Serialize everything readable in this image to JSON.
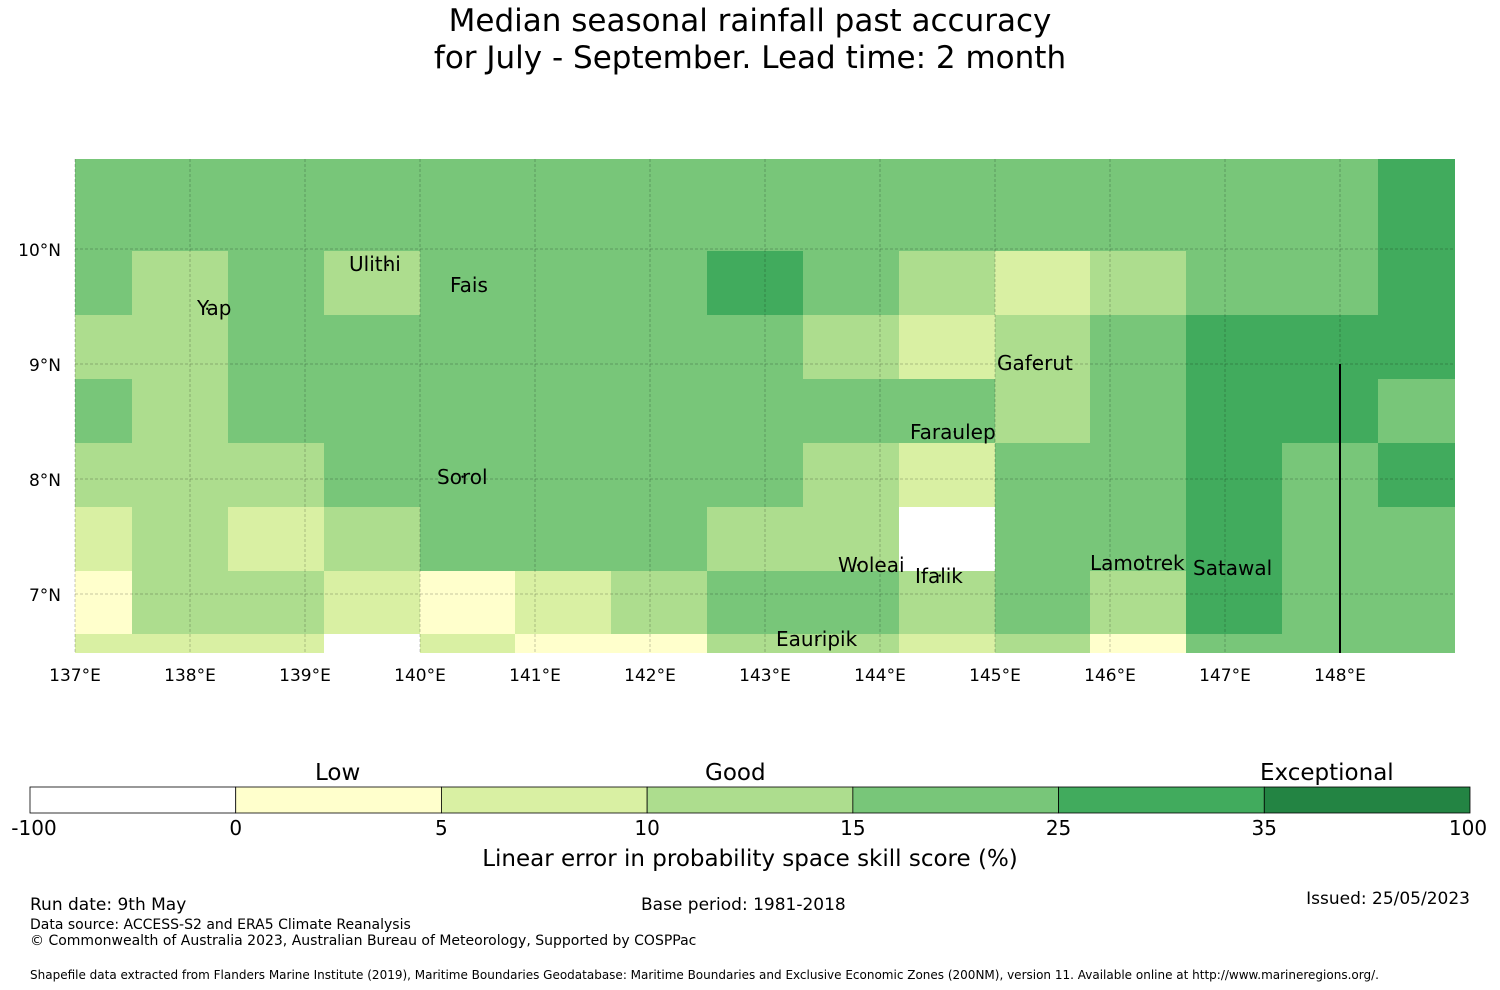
{
  "title": {
    "line1": "Median seasonal rainfall past accuracy",
    "line2": "for July - September. Lead time: 2 month"
  },
  "map": {
    "lon_range": [
      137.0,
      149.0
    ],
    "lat_range": [
      6.5,
      10.8
    ],
    "cell_size_deg": 0.833,
    "grid": true,
    "lat_ticks": [
      {
        "value": 10,
        "label": "10°N"
      },
      {
        "value": 9,
        "label": "9°N"
      },
      {
        "value": 8,
        "label": "8°N"
      },
      {
        "value": 7,
        "label": "7°N"
      }
    ],
    "lon_ticks": [
      {
        "value": 137,
        "label": "137°E"
      },
      {
        "value": 138,
        "label": "138°E"
      },
      {
        "value": 139,
        "label": "139°E"
      },
      {
        "value": 140,
        "label": "140°E"
      },
      {
        "value": 141,
        "label": "141°E"
      },
      {
        "value": 142,
        "label": "142°E"
      },
      {
        "value": 143,
        "label": "143°E"
      },
      {
        "value": 144,
        "label": "144°E"
      },
      {
        "value": 145,
        "label": "145°E"
      },
      {
        "value": 146,
        "label": "146°E"
      },
      {
        "value": 147,
        "label": "147°E"
      },
      {
        "value": 148,
        "label": "148°E"
      }
    ],
    "boundary_line": {
      "lon": 148.0,
      "lat_from": 6.5,
      "lat_to": 9.0
    },
    "places": [
      {
        "name": "Yap",
        "lon": 138.15,
        "lat": 9.48
      },
      {
        "name": "Ulithi",
        "lon": 139.72,
        "lat": 9.86
      },
      {
        "name": "Fais",
        "lon": 140.52,
        "lat": 9.69
      },
      {
        "name": "Gaferut",
        "lon": 145.37,
        "lat": 9.0
      },
      {
        "name": "Faraulep",
        "lon": 144.65,
        "lat": 8.41
      },
      {
        "name": "Sorol",
        "lon": 140.37,
        "lat": 8.02
      },
      {
        "name": "Woleai",
        "lon": 143.81,
        "lat": 7.25
      },
      {
        "name": "Lamotrek",
        "lon": 146.28,
        "lat": 7.28
      },
      {
        "name": "Satawal",
        "lon": 147.07,
        "lat": 7.22
      },
      {
        "name": "Ifalik",
        "lon": 144.52,
        "lat": 7.16
      },
      {
        "name": "Eauripik",
        "lon": 143.45,
        "lat": 6.6
      }
    ]
  },
  "chart_data": {
    "type": "heatmap",
    "title": "Median seasonal rainfall past accuracy for July - September. Lead time: 2 month",
    "xlabel": "",
    "ylabel": "",
    "colorbar_label": "Linear error in probability space skill score (%)",
    "x_centers": [
      137.0,
      137.833,
      138.667,
      139.5,
      140.333,
      141.167,
      142.0,
      142.833,
      143.667,
      144.5,
      145.333,
      146.167,
      147.0,
      147.833,
      148.667
    ],
    "y_centers": [
      10.33,
      9.78,
      9.22,
      8.67,
      8.11,
      7.56,
      7.0,
      6.55
    ],
    "level_codes_legend": {
      "1": "-100 to 0",
      "2": "0 to 5",
      "3": "5 to 10",
      "4": "10 to 15",
      "5": "15 to 25",
      "6": "25 to 35",
      "7": "35 to 100"
    },
    "level_codes": [
      [
        5,
        5,
        5,
        5,
        5,
        5,
        5,
        5,
        5,
        5,
        5,
        5,
        5,
        5,
        6
      ],
      [
        5,
        4,
        5,
        4,
        5,
        5,
        5,
        6,
        5,
        4,
        3,
        4,
        5,
        5,
        6
      ],
      [
        4,
        4,
        5,
        5,
        5,
        5,
        5,
        5,
        4,
        3,
        4,
        5,
        6,
        6,
        6
      ],
      [
        5,
        4,
        5,
        5,
        5,
        5,
        5,
        5,
        5,
        5,
        4,
        5,
        6,
        6,
        5
      ],
      [
        4,
        4,
        4,
        5,
        5,
        5,
        5,
        5,
        4,
        3,
        5,
        5,
        6,
        5,
        6
      ],
      [
        3,
        4,
        3,
        4,
        5,
        5,
        5,
        4,
        4,
        1,
        5,
        5,
        6,
        5,
        5
      ],
      [
        2,
        4,
        4,
        3,
        2,
        3,
        4,
        5,
        5,
        4,
        5,
        4,
        6,
        5,
        5
      ],
      [
        3,
        3,
        3,
        1,
        3,
        2,
        2,
        4,
        4,
        3,
        4,
        2,
        5,
        5,
        5
      ]
    ]
  },
  "colorbar": {
    "boundaries": [
      "-100",
      "0",
      "5",
      "10",
      "15",
      "25",
      "35",
      "100"
    ],
    "colors": [
      "#ffffff",
      "#ffffcc",
      "#d9f0a3",
      "#addd8e",
      "#78c679",
      "#41ab5d",
      "#238443"
    ],
    "categories": [
      {
        "label": "Low"
      },
      {
        "label": "Good"
      },
      {
        "label": "Exceptional"
      }
    ]
  },
  "footer": {
    "run_date": "Run date: 9th May",
    "base_period": "Base period: 1981-2018",
    "issued": "Issued: 25/05/2023",
    "data_source": "Data source: ACCESS-S2 and ERA5 Climate Reanalysis",
    "copyright": "© Commonwealth of Australia 2023, Australian Bureau of Meteorology, Supported by COSPPac",
    "shapefile": "Shapefile data extracted from Flanders Marine Institute (2019), Maritime Boundaries Geodatabase: Maritime Boundaries and Exclusive Economic Zones (200NM), version 11. Available online at http://www.marineregions.org/."
  }
}
